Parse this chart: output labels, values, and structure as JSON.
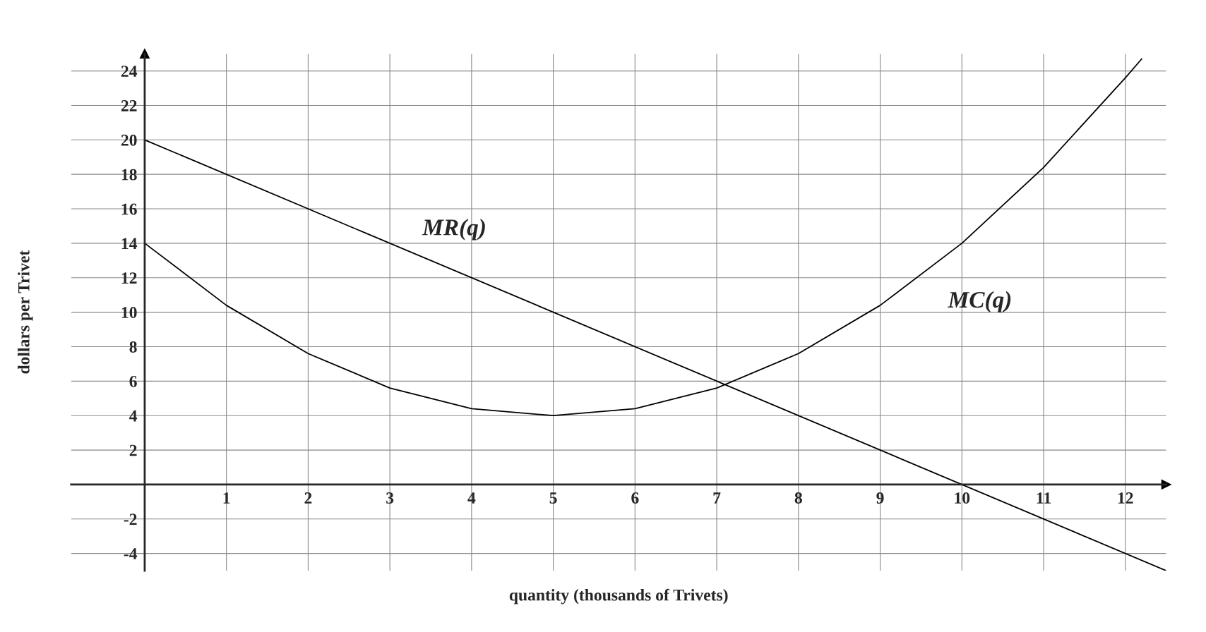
{
  "chart_data": {
    "type": "line",
    "xlabel": "quantity (thousands of Trivets)",
    "ylabel": "dollars per Trivet",
    "series": [
      {
        "name": "MR(q)",
        "color": "#000000",
        "x": [
          0,
          12.5
        ],
        "values": [
          20,
          -5
        ]
      },
      {
        "name": "MC(q)",
        "color": "#000000",
        "x": [
          0,
          1,
          2,
          3,
          4,
          5,
          6,
          7,
          8,
          9,
          10,
          11,
          12,
          12.2
        ],
        "values": [
          14,
          10.4,
          7.6,
          5.6,
          4.4,
          4,
          4.4,
          5.6,
          7.6,
          10.4,
          14,
          18.4,
          23.6,
          24.7
        ]
      }
    ],
    "xlim": [
      -0.9,
      12.5
    ],
    "ylim": [
      -5,
      25
    ],
    "xticks": [
      1,
      2,
      3,
      4,
      5,
      6,
      7,
      8,
      9,
      10,
      11,
      12
    ],
    "yticks": [
      -4,
      -2,
      2,
      4,
      6,
      8,
      10,
      12,
      14,
      16,
      18,
      20,
      22,
      24
    ],
    "grid": true,
    "marker": "none",
    "line_style": "solid",
    "legend": false
  }
}
